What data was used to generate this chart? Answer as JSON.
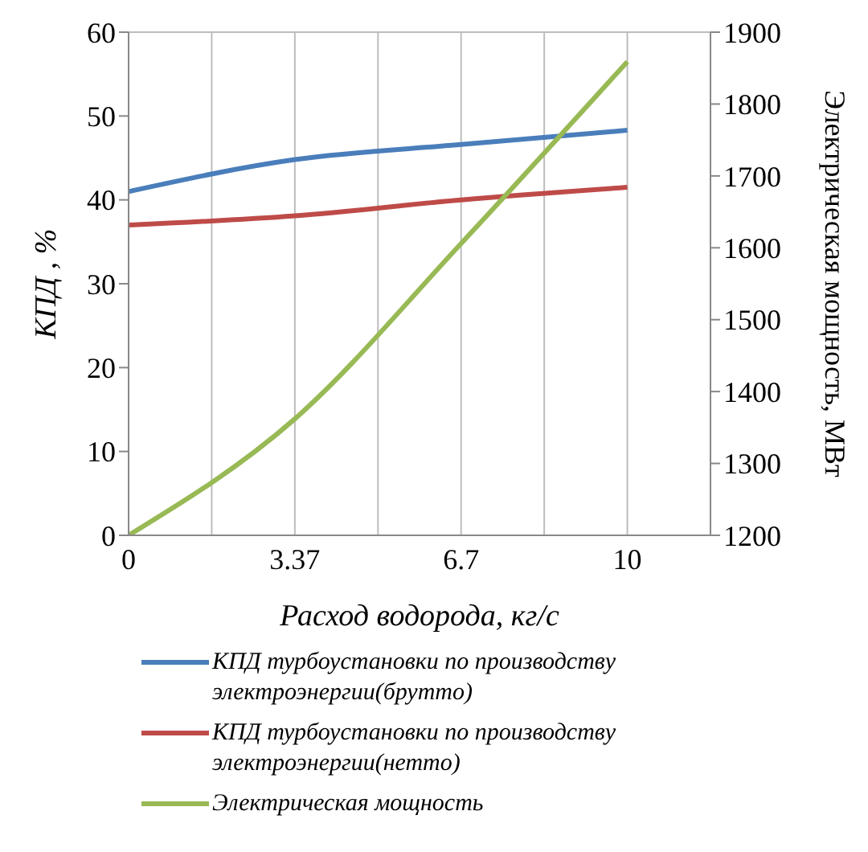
{
  "chart_data": {
    "type": "line",
    "xlabel": "Расход водорода, кг/с",
    "ylabel": "КПД , %",
    "y2label": "Электрическая мощность, МВт",
    "categories": [
      "0",
      "3.37",
      "6.7",
      "10"
    ],
    "series": [
      {
        "name": "КПД  турбоустановки по производству электроэнергии(брутто)",
        "color": "#4a7ebb",
        "values": [
          41.0,
          44.8,
          46.6,
          48.3
        ]
      },
      {
        "name": "КПД  турбоустановки по производству электроэнергии(нетто)",
        "color": "#be4b48",
        "values": [
          37.0,
          38.1,
          40.0,
          41.5
        ]
      },
      {
        "name": "Электрическая мощность",
        "color": "#98b954",
        "values": [
          1200,
          1362,
          1606,
          1859
        ],
        "axis": "y2"
      }
    ],
    "ylim": [
      0,
      60
    ],
    "yticks": [
      0,
      10,
      20,
      30,
      40,
      50,
      60
    ],
    "y2lim": [
      1200,
      1900
    ],
    "y2ticks": [
      1200,
      1300,
      1400,
      1500,
      1600,
      1700,
      1800,
      1900
    ],
    "grid": true,
    "legend": "bottom",
    "marker": "none",
    "line_style": "solid"
  }
}
